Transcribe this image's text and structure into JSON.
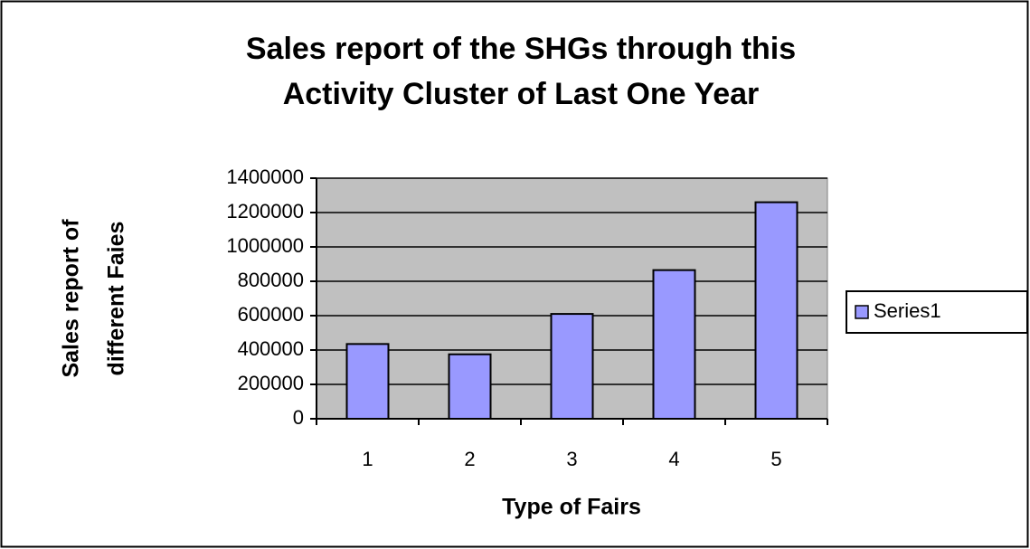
{
  "chart_data": {
    "type": "bar",
    "title": [
      "Sales report of the SHGs through this",
      "Activity Cluster of Last One Year"
    ],
    "y_label": [
      "Sales report of",
      "different Faies"
    ],
    "x_label": "Type of Fairs",
    "categories": [
      "1",
      "2",
      "3",
      "4",
      "5"
    ],
    "series": [
      {
        "name": "Series1",
        "color": "#9999ff",
        "values": [
          435000,
          375000,
          610000,
          865000,
          1260000
        ]
      }
    ],
    "ylim": [
      0,
      1400000
    ],
    "yticks": [
      0,
      200000,
      400000,
      600000,
      800000,
      1000000,
      1200000,
      1400000
    ],
    "grid": true,
    "legend": "right"
  }
}
